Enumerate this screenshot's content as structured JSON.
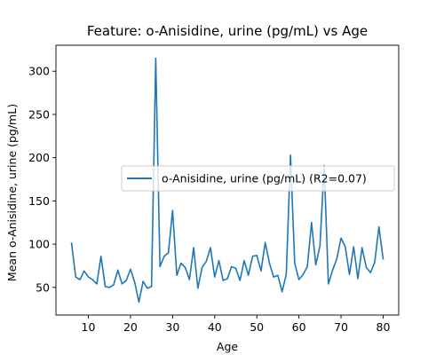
{
  "chart_data": {
    "type": "line",
    "title": "Feature: o-Anisidine, urine (pg/mL) vs Age",
    "xlabel": "Age",
    "ylabel": "Mean o-Anisidine, urine (pg/mL)",
    "xlim": [
      2.3,
      83.7
    ],
    "ylim": [
      18,
      330
    ],
    "xticks": [
      10,
      20,
      30,
      40,
      50,
      60,
      70,
      80
    ],
    "yticks": [
      50,
      100,
      150,
      200,
      250,
      300
    ],
    "grid": false,
    "legend_position": "center-right",
    "series": [
      {
        "name": "o-Anisidine, urine (pg/mL) (R2=0.07)",
        "color": "#1f77b4",
        "x": [
          6,
          7,
          8,
          9,
          10,
          11,
          12,
          13,
          14,
          15,
          16,
          17,
          18,
          19,
          20,
          21,
          22,
          23,
          24,
          25,
          26,
          27,
          28,
          29,
          30,
          31,
          32,
          33,
          34,
          35,
          36,
          37,
          38,
          39,
          40,
          41,
          42,
          43,
          44,
          45,
          46,
          47,
          48,
          49,
          50,
          51,
          52,
          53,
          54,
          55,
          56,
          57,
          58,
          59,
          60,
          61,
          62,
          63,
          64,
          65,
          66,
          67,
          68,
          69,
          70,
          71,
          72,
          73,
          74,
          75,
          76,
          77,
          78,
          79,
          80
        ],
        "y": [
          101,
          62,
          59,
          69,
          62,
          59,
          54,
          86,
          51,
          50,
          53,
          70,
          54,
          58,
          71,
          56,
          33,
          57,
          49,
          51,
          315,
          74,
          86,
          90,
          139,
          64,
          78,
          73,
          59,
          96,
          49,
          73,
          80,
          96,
          62,
          81,
          58,
          60,
          74,
          72,
          58,
          81,
          64,
          86,
          87,
          69,
          102,
          78,
          62,
          64,
          45,
          65,
          203,
          78,
          59,
          65,
          74,
          125,
          76,
          98,
          191,
          54,
          70,
          83,
          107,
          97,
          65,
          97,
          60,
          96,
          73,
          67,
          79,
          120,
          83
        ]
      }
    ]
  }
}
